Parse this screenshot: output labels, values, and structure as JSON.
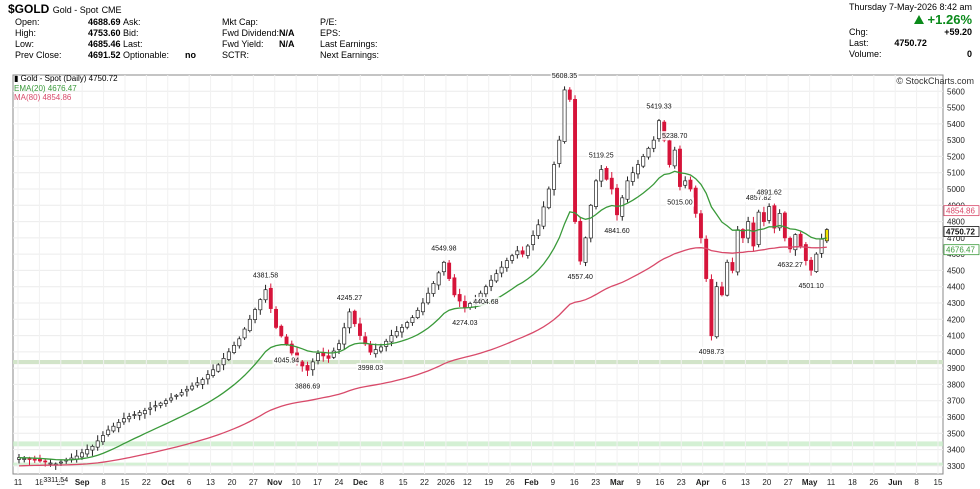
{
  "header": {
    "symbol": "$GOLD",
    "name": "Gold - Spot",
    "exchange": "CME",
    "date_line": "Thursday  7-May-2026  8:42 am",
    "change_pct": "+1.26%",
    "fields_col1": [
      {
        "label": "Open:",
        "value": "4688.69"
      },
      {
        "label": "High:",
        "value": "4753.60"
      },
      {
        "label": "Low:",
        "value": "4685.46"
      },
      {
        "label": "Prev Close:",
        "value": "4691.52"
      }
    ],
    "fields_col2": [
      {
        "label": "Ask:",
        "value": ""
      },
      {
        "label": "Bid:",
        "value": ""
      },
      {
        "label": "Last:",
        "value": ""
      },
      {
        "label": "Optionable:",
        "value": "no"
      }
    ],
    "fields_col3": [
      {
        "label": "Mkt Cap:",
        "value": ""
      },
      {
        "label": "Fwd Dividend:",
        "value": "N/A"
      },
      {
        "label": "Fwd Yield:",
        "value": "N/A"
      },
      {
        "label": "SCTR:",
        "value": ""
      }
    ],
    "fields_col4": [
      {
        "label": "P/E:",
        "value": ""
      },
      {
        "label": "EPS:",
        "value": ""
      },
      {
        "label": "Last Earnings:",
        "value": ""
      },
      {
        "label": "Next Earnings:",
        "value": ""
      }
    ],
    "right_fields": [
      {
        "label": "Chg:",
        "value": "+59.20"
      },
      {
        "label": "Last:",
        "value": "4750.72"
      },
      {
        "label": "Volume:",
        "value": "0"
      }
    ]
  },
  "legend": {
    "price": "Gold - Spot (Daily) 4750.72",
    "ema": "EMA(20) 4676.47",
    "ma": "MA(80) 4854.86"
  },
  "copyright": "© StockCharts.com",
  "colors": {
    "up": "#ffffff",
    "down": "#d6143a",
    "ema": "#3a9a3a",
    "ma": "#d84a6a",
    "support_green": "#c6ebc6",
    "support_pink": "#f6c9cf",
    "last_highlight": "#f2e400"
  },
  "chart_data": {
    "type": "candlestick",
    "title": "Gold - Spot (Daily) 4750.72",
    "ylim": [
      3250,
      5700
    ],
    "yticks": [
      3300,
      3400,
      3500,
      3600,
      3700,
      3800,
      3900,
      4000,
      4100,
      4200,
      4300,
      4400,
      4500,
      4600,
      4700,
      4800,
      4900,
      5000,
      5100,
      5200,
      5300,
      5400,
      5500,
      5600
    ],
    "xticks": [
      "11",
      "18",
      "25",
      "Sep",
      "8",
      "15",
      "22",
      "Oct",
      "6",
      "13",
      "20",
      "27",
      "Nov",
      "10",
      "17",
      "24",
      "Dec",
      "8",
      "15",
      "22",
      "2026",
      "12",
      "19",
      "26",
      "Feb",
      "9",
      "16",
      "23",
      "Mar",
      "9",
      "16",
      "23",
      "Apr",
      "6",
      "13",
      "20",
      "27",
      "May",
      "11",
      "18",
      "26",
      "Jun",
      "8",
      "15"
    ],
    "right_labels": [
      "4854.86",
      "4750.72",
      "4676.47"
    ],
    "support_bands": [
      {
        "low": 3925,
        "high": 3950,
        "color": "pink"
      },
      {
        "low": 3925,
        "high": 3950,
        "color": "green"
      },
      {
        "low": 3420,
        "high": 3450,
        "color": "green"
      },
      {
        "low": 3300,
        "high": 3320,
        "color": "green"
      }
    ],
    "annotations": [
      {
        "text": "3311.54",
        "value": 3311.54
      },
      {
        "text": "4381.58",
        "value": 4381.58
      },
      {
        "text": "4045.94",
        "value": 4045.94
      },
      {
        "text": "3886.69",
        "value": 3886.69
      },
      {
        "text": "4245.27",
        "value": 4245.27
      },
      {
        "text": "3998.03",
        "value": 3998.03
      },
      {
        "text": "4549.98",
        "value": 4549.98
      },
      {
        "text": "4274.03",
        "value": 4274.03
      },
      {
        "text": "5608.35",
        "value": 5608.35
      },
      {
        "text": "4404.68",
        "value": 4404.68
      },
      {
        "text": "4557.40",
        "value": 4557.4
      },
      {
        "text": "5119.25",
        "value": 5119.25
      },
      {
        "text": "4841.60",
        "value": 4841.6
      },
      {
        "text": "5419.33",
        "value": 5419.33
      },
      {
        "text": "5238.70",
        "value": 5238.7
      },
      {
        "text": "5015.00",
        "value": 5015.0
      },
      {
        "text": "4098.73",
        "value": 4098.73
      },
      {
        "text": "4857.82",
        "value": 4857.82
      },
      {
        "text": "4891.62",
        "value": 4891.62
      },
      {
        "text": "4632.27",
        "value": 4632.27
      },
      {
        "text": "4501.10",
        "value": 4501.1
      }
    ],
    "keypoints": [
      [
        0,
        3350
      ],
      [
        4,
        3330
      ],
      [
        7,
        3311.54
      ],
      [
        11,
        3360
      ],
      [
        14,
        3420
      ],
      [
        17,
        3520
      ],
      [
        20,
        3590
      ],
      [
        24,
        3640
      ],
      [
        28,
        3700
      ],
      [
        31,
        3750
      ],
      [
        35,
        3830
      ],
      [
        38,
        3920
      ],
      [
        42,
        4080
      ],
      [
        45,
        4260
      ],
      [
        47,
        4381.58
      ],
      [
        49,
        4150
      ],
      [
        51,
        4045.94
      ],
      [
        53,
        3940
      ],
      [
        55,
        3886.69
      ],
      [
        57,
        3990
      ],
      [
        59,
        3960
      ],
      [
        61,
        4050
      ],
      [
        63,
        4245.27
      ],
      [
        65,
        4100
      ],
      [
        67,
        3998.03
      ],
      [
        69,
        4030
      ],
      [
        71,
        4100
      ],
      [
        73,
        4150
      ],
      [
        75,
        4210
      ],
      [
        77,
        4300
      ],
      [
        79,
        4420
      ],
      [
        81,
        4549.98
      ],
      [
        83,
        4350
      ],
      [
        85,
        4274.03
      ],
      [
        87,
        4320
      ],
      [
        89,
        4400
      ],
      [
        91,
        4480
      ],
      [
        93,
        4560
      ],
      [
        95,
        4620
      ],
      [
        96,
        4600
      ],
      [
        97,
        4650
      ],
      [
        99,
        4780
      ],
      [
        101,
        5000
      ],
      [
        103,
        5300
      ],
      [
        104,
        5608.35
      ],
      [
        105,
        5550
      ],
      [
        106,
        4800
      ],
      [
        107,
        4557.4
      ],
      [
        108,
        4700
      ],
      [
        109,
        4900
      ],
      [
        110,
        5050
      ],
      [
        111,
        5119.25
      ],
      [
        113,
        5000
      ],
      [
        114,
        4841.6
      ],
      [
        116,
        5050
      ],
      [
        118,
        5150
      ],
      [
        120,
        5250
      ],
      [
        121,
        5300
      ],
      [
        122,
        5419.33
      ],
      [
        123,
        5300
      ],
      [
        124,
        5150
      ],
      [
        125,
        5238.7
      ],
      [
        126,
        5015.0
      ],
      [
        127,
        5050
      ],
      [
        128,
        5000
      ],
      [
        129,
        4850
      ],
      [
        130,
        4700
      ],
      [
        131,
        4450
      ],
      [
        132,
        4098.73
      ],
      [
        133,
        4400
      ],
      [
        134,
        4350
      ],
      [
        135,
        4550
      ],
      [
        136,
        4500
      ],
      [
        137,
        4750
      ],
      [
        138,
        4700
      ],
      [
        139,
        4800
      ],
      [
        140,
        4650
      ],
      [
        141,
        4857.82
      ],
      [
        142,
        4800
      ],
      [
        143,
        4891.62
      ],
      [
        144,
        4760
      ],
      [
        145,
        4850
      ],
      [
        146,
        4700
      ],
      [
        147,
        4632.27
      ],
      [
        148,
        4720
      ],
      [
        149,
        4650
      ],
      [
        150,
        4560
      ],
      [
        151,
        4501.1
      ],
      [
        152,
        4600
      ],
      [
        153,
        4691.52
      ],
      [
        154,
        4750.72
      ]
    ]
  }
}
